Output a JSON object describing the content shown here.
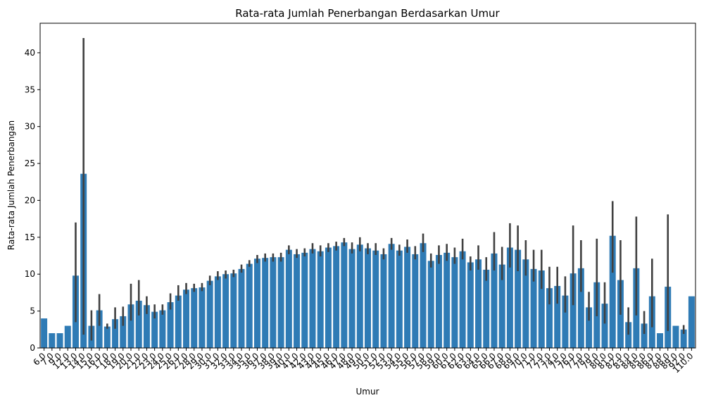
{
  "chart_data": {
    "type": "bar",
    "title": "Rata-rata Jumlah Penerbangan Berdasarkan Umur",
    "x_label": "Umur",
    "y_label": "Rata-rata Jumlah Penerbangan",
    "color": "#2f7bb5",
    "error_color": "#404040",
    "categories": [
      "6.0",
      "7.0",
      "9.0",
      "12.0",
      "13.0",
      "14.0",
      "15.0",
      "16.0",
      "17.0",
      "18.0",
      "19.0",
      "20.0",
      "21.0",
      "22.0",
      "23.0",
      "24.0",
      "25.0",
      "26.0",
      "27.0",
      "28.0",
      "29.0",
      "30.0",
      "31.0",
      "32.0",
      "33.0",
      "34.0",
      "35.0",
      "36.0",
      "37.0",
      "38.0",
      "39.0",
      "40.0",
      "41.0",
      "42.0",
      "43.0",
      "44.0",
      "45.0",
      "46.0",
      "47.0",
      "48.0",
      "49.0",
      "50.0",
      "51.0",
      "52.0",
      "53.0",
      "54.0",
      "55.0",
      "56.0",
      "57.0",
      "58.0",
      "59.0",
      "60.0",
      "61.0",
      "62.0",
      "63.0",
      "64.0",
      "65.0",
      "66.0",
      "67.0",
      "68.0",
      "69.0",
      "70.0",
      "71.0",
      "72.0",
      "73.0",
      "74.0",
      "75.0",
      "76.0",
      "77.0",
      "78.0",
      "79.0",
      "80.0",
      "81.0",
      "82.0",
      "83.0",
      "84.0",
      "85.0",
      "86.0",
      "87.0",
      "88.0",
      "89.0",
      "92.0",
      "110.0"
    ],
    "values": [
      4.0,
      2.0,
      2.0,
      3.0,
      9.8,
      23.6,
      3.0,
      5.1,
      2.9,
      3.9,
      4.3,
      5.9,
      6.4,
      5.8,
      4.9,
      5.1,
      6.2,
      7.1,
      7.9,
      8.1,
      8.2,
      9.1,
      9.7,
      10.0,
      10.1,
      10.7,
      11.4,
      12.1,
      12.2,
      12.3,
      12.3,
      13.3,
      12.7,
      12.9,
      13.4,
      13.1,
      13.6,
      13.8,
      14.3,
      13.4,
      14.0,
      13.5,
      13.2,
      12.7,
      14.1,
      13.2,
      13.7,
      12.7,
      14.2,
      11.8,
      12.6,
      12.9,
      12.3,
      13.1,
      11.6,
      12.0,
      10.6,
      12.8,
      11.3,
      13.6,
      13.3,
      12.0,
      10.7,
      10.5,
      8.1,
      8.4,
      7.1,
      10.1,
      10.8,
      5.5,
      8.9,
      6.0,
      15.2,
      9.2,
      3.5,
      10.8,
      3.3,
      7.0,
      2.0,
      8.3,
      3.0,
      2.5,
      7.0
    ],
    "ci_low": [
      null,
      null,
      null,
      null,
      3.5,
      1.8,
      1.0,
      3.0,
      2.6,
      2.6,
      3.0,
      3.7,
      4.4,
      4.6,
      4.0,
      4.5,
      5.2,
      6.4,
      7.3,
      7.6,
      7.7,
      8.5,
      9.2,
      9.4,
      9.6,
      10.2,
      11.0,
      11.5,
      11.7,
      11.7,
      11.7,
      12.7,
      12.2,
      12.4,
      12.8,
      12.4,
      13.0,
      13.2,
      13.8,
      12.8,
      13.1,
      12.7,
      12.6,
      12.0,
      13.3,
      12.5,
      12.9,
      12.0,
      13.0,
      10.9,
      11.4,
      11.8,
      11.4,
      12.0,
      10.5,
      10.6,
      9.1,
      10.5,
      9.2,
      10.9,
      10.4,
      9.8,
      9.0,
      8.0,
      5.9,
      6.0,
      4.8,
      5.8,
      7.6,
      3.7,
      4.3,
      3.3,
      10.2,
      4.5,
      1.8,
      4.4,
      1.9,
      2.8,
      null,
      2.3,
      null,
      1.9,
      null
    ],
    "ci_high": [
      null,
      null,
      null,
      null,
      17.0,
      42.0,
      5.1,
      7.3,
      3.3,
      5.5,
      5.6,
      8.7,
      9.2,
      7.0,
      5.9,
      5.9,
      7.4,
      8.5,
      8.8,
      8.7,
      8.8,
      9.8,
      10.4,
      10.5,
      10.6,
      11.3,
      11.9,
      12.6,
      12.8,
      12.8,
      12.9,
      13.9,
      13.4,
      13.5,
      14.2,
      13.9,
      14.2,
      14.4,
      14.9,
      14.3,
      15.0,
      14.2,
      14.2,
      13.5,
      14.9,
      14.0,
      14.7,
      13.8,
      15.5,
      12.8,
      13.9,
      14.1,
      13.6,
      14.8,
      12.4,
      13.9,
      12.3,
      15.7,
      13.7,
      16.9,
      16.6,
      14.6,
      13.3,
      13.3,
      11.0,
      11.0,
      9.7,
      16.6,
      14.6,
      7.6,
      14.8,
      8.9,
      19.9,
      14.6,
      5.5,
      17.8,
      5.0,
      12.1,
      null,
      18.1,
      null,
      3.1,
      null
    ],
    "ylim": [
      0,
      44.0
    ],
    "yticks": [
      0,
      5,
      10,
      15,
      20,
      25,
      30,
      35,
      40
    ]
  }
}
